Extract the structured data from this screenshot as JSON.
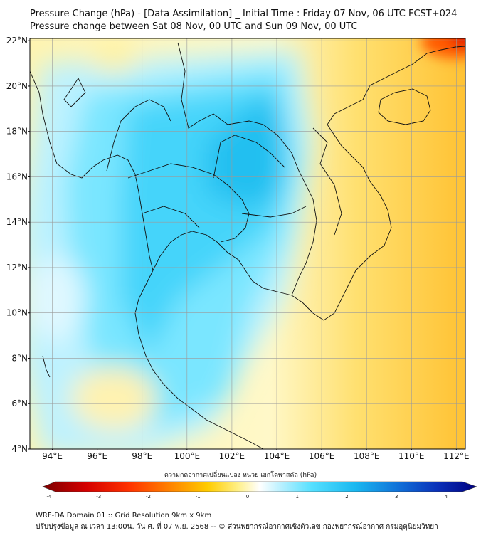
{
  "header": {
    "title": "Pressure Change (hPa) - [Data Assimilation] _ Initial Time : Friday 07 Nov, 06 UTC FCST+024",
    "subtitle": "Pressure change between Sat 08 Nov, 00 UTC and Sun 09 Nov, 00 UTC"
  },
  "map": {
    "lat_labels": [
      "4°N",
      "6°N",
      "8°N",
      "10°N",
      "12°N",
      "14°N",
      "16°N",
      "18°N",
      "20°N",
      "22°N"
    ],
    "lon_labels": [
      "94°E",
      "96°E",
      "98°E",
      "100°E",
      "102°E",
      "104°E",
      "106°E",
      "108°E",
      "110°E",
      "112°E"
    ],
    "lat_values": [
      4,
      6,
      8,
      10,
      12,
      14,
      16,
      18,
      20,
      22
    ],
    "lon_values": [
      94,
      96,
      98,
      100,
      102,
      104,
      106,
      108,
      110,
      112
    ]
  },
  "colorbar": {
    "title": "ความกดอากาศเปลี่ยนแปลง หน่วย เฮกโตพาสคัล (hPa)",
    "ticks": [
      "-4",
      "-3",
      "-2",
      "-1",
      "0",
      "1",
      "2",
      "3",
      "4"
    ],
    "tick_values": [
      -4,
      -3,
      -2,
      -1,
      0,
      1,
      2,
      3,
      4
    ],
    "colors": [
      "#7a0000",
      "#d40000",
      "#ff3300",
      "#ff8800",
      "#ffcc00",
      "#fff088",
      "#ffffff",
      "#b8f0ff",
      "#55e0ff",
      "#1ab8f0",
      "#1070d8",
      "#0a30b8",
      "#000080"
    ]
  },
  "footer": {
    "line1": "WRF-DA Domain 01 :: Grid Resolution 9km x 9km",
    "line2": "ปรับปรุงข้อมูล ณ เวลา 13:00น. วัน ศ. ที่ 07 พ.ย. 2568 -- © ส่วนพยากรณ์อากาศเชิงตัวเลข กองพยากรณ์อากาศ กรมอุตุนิยมวิทยา"
  }
}
